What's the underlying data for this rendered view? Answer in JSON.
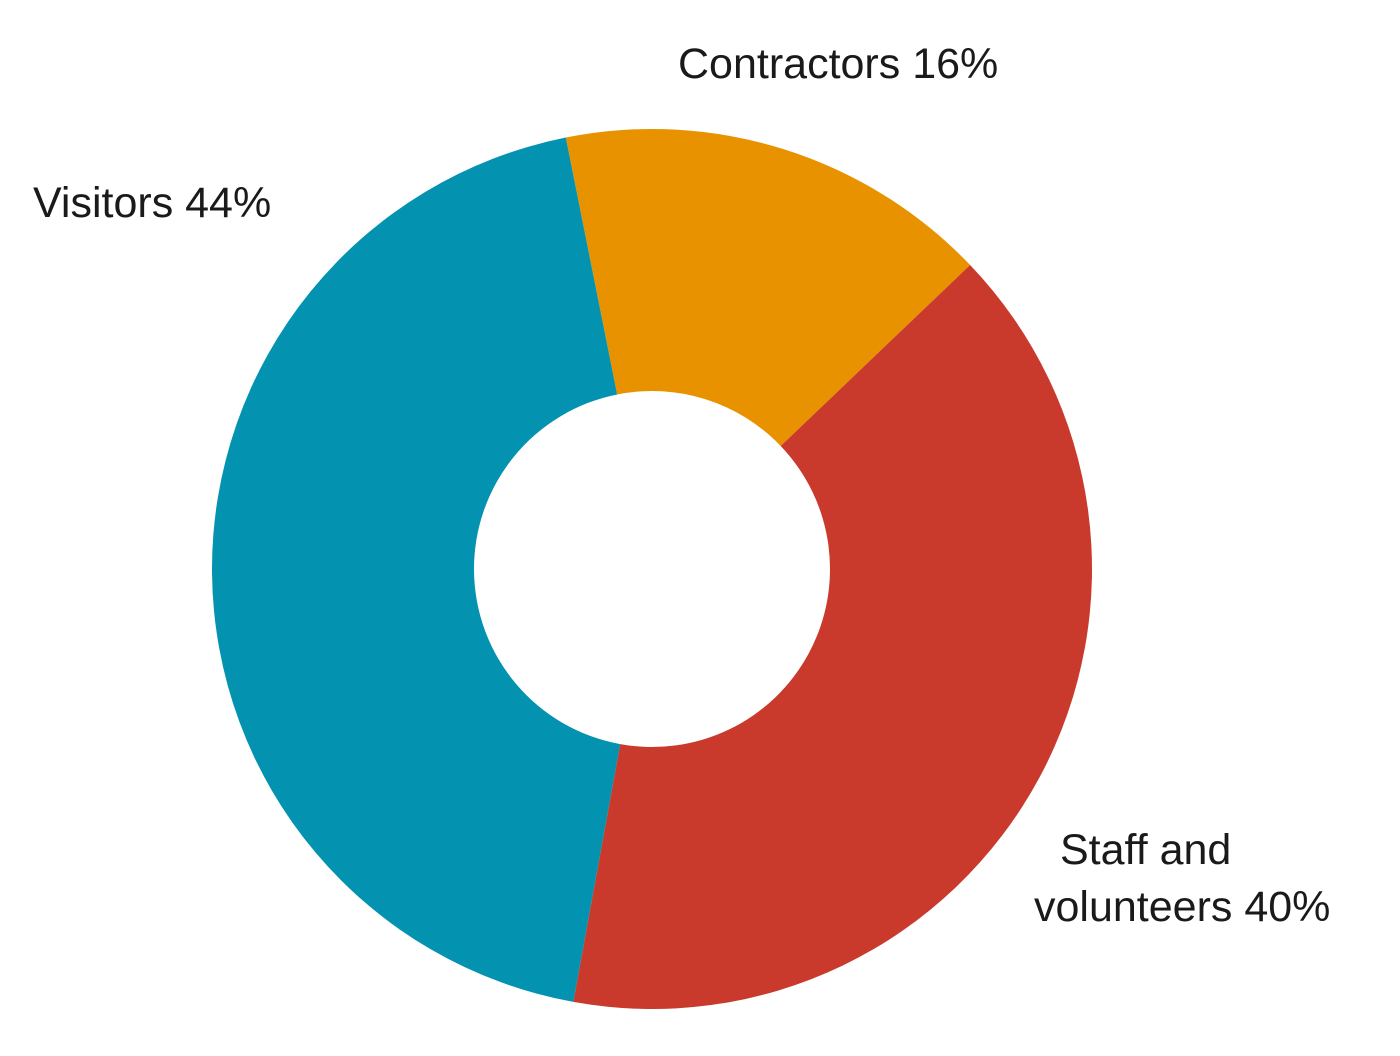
{
  "chart_data": {
    "type": "pie",
    "donut": true,
    "title": "",
    "slices": [
      {
        "label": "Contractors",
        "value": 16,
        "label_text": "Contractors 16%",
        "color": "#E89200"
      },
      {
        "label": "Staff and volunteers",
        "value": 40,
        "label_lines": [
          "Staff and",
          "volunteers 40%"
        ],
        "color": "#C93A2D"
      },
      {
        "label": "Visitors",
        "value": 44,
        "label_text": "Visitors 44%",
        "color": "#0392AF"
      }
    ],
    "units": "%"
  }
}
